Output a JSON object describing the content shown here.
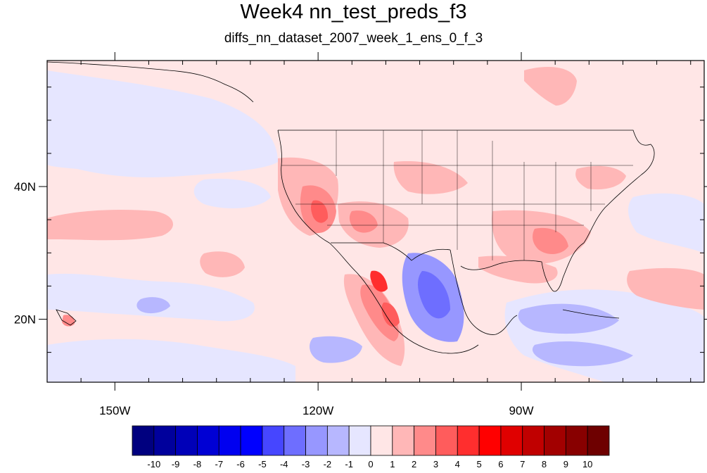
{
  "title": "Week4 nn_test_preds_f3",
  "subtitle": "diffs_nn_dataset_2007_week_1_ens_0_f_3",
  "map": {
    "lon_range": [
      -160,
      -63
    ],
    "lat_range": [
      10.5,
      59
    ],
    "x_ticks": [
      {
        "lon": -150,
        "label": "150W"
      },
      {
        "lon": -120,
        "label": "120W"
      },
      {
        "lon": -90,
        "label": "90W"
      }
    ],
    "y_ticks": [
      {
        "lat": 40,
        "label": "40N"
      },
      {
        "lat": 20,
        "label": "20N"
      }
    ]
  },
  "colorbar": {
    "labels": [
      "-10",
      "-9",
      "-8",
      "-7",
      "-6",
      "-5",
      "-4",
      "-3",
      "-2",
      "-1",
      "0",
      "1",
      "2",
      "3",
      "4",
      "5",
      "6",
      "7",
      "8",
      "9",
      "10"
    ],
    "colors": [
      "#00007f",
      "#00009c",
      "#0000b8",
      "#0000d4",
      "#0000f0",
      "#0000ff",
      "#4646ff",
      "#6e6eff",
      "#9797ff",
      "#b7b7ff",
      "#e6e6ff",
      "#ffe6e6",
      "#ffb7b7",
      "#ff8a8a",
      "#ff5c5c",
      "#ff2e2e",
      "#ff0000",
      "#e00000",
      "#c00000",
      "#a20000",
      "#880000",
      "#6e0000"
    ]
  }
}
